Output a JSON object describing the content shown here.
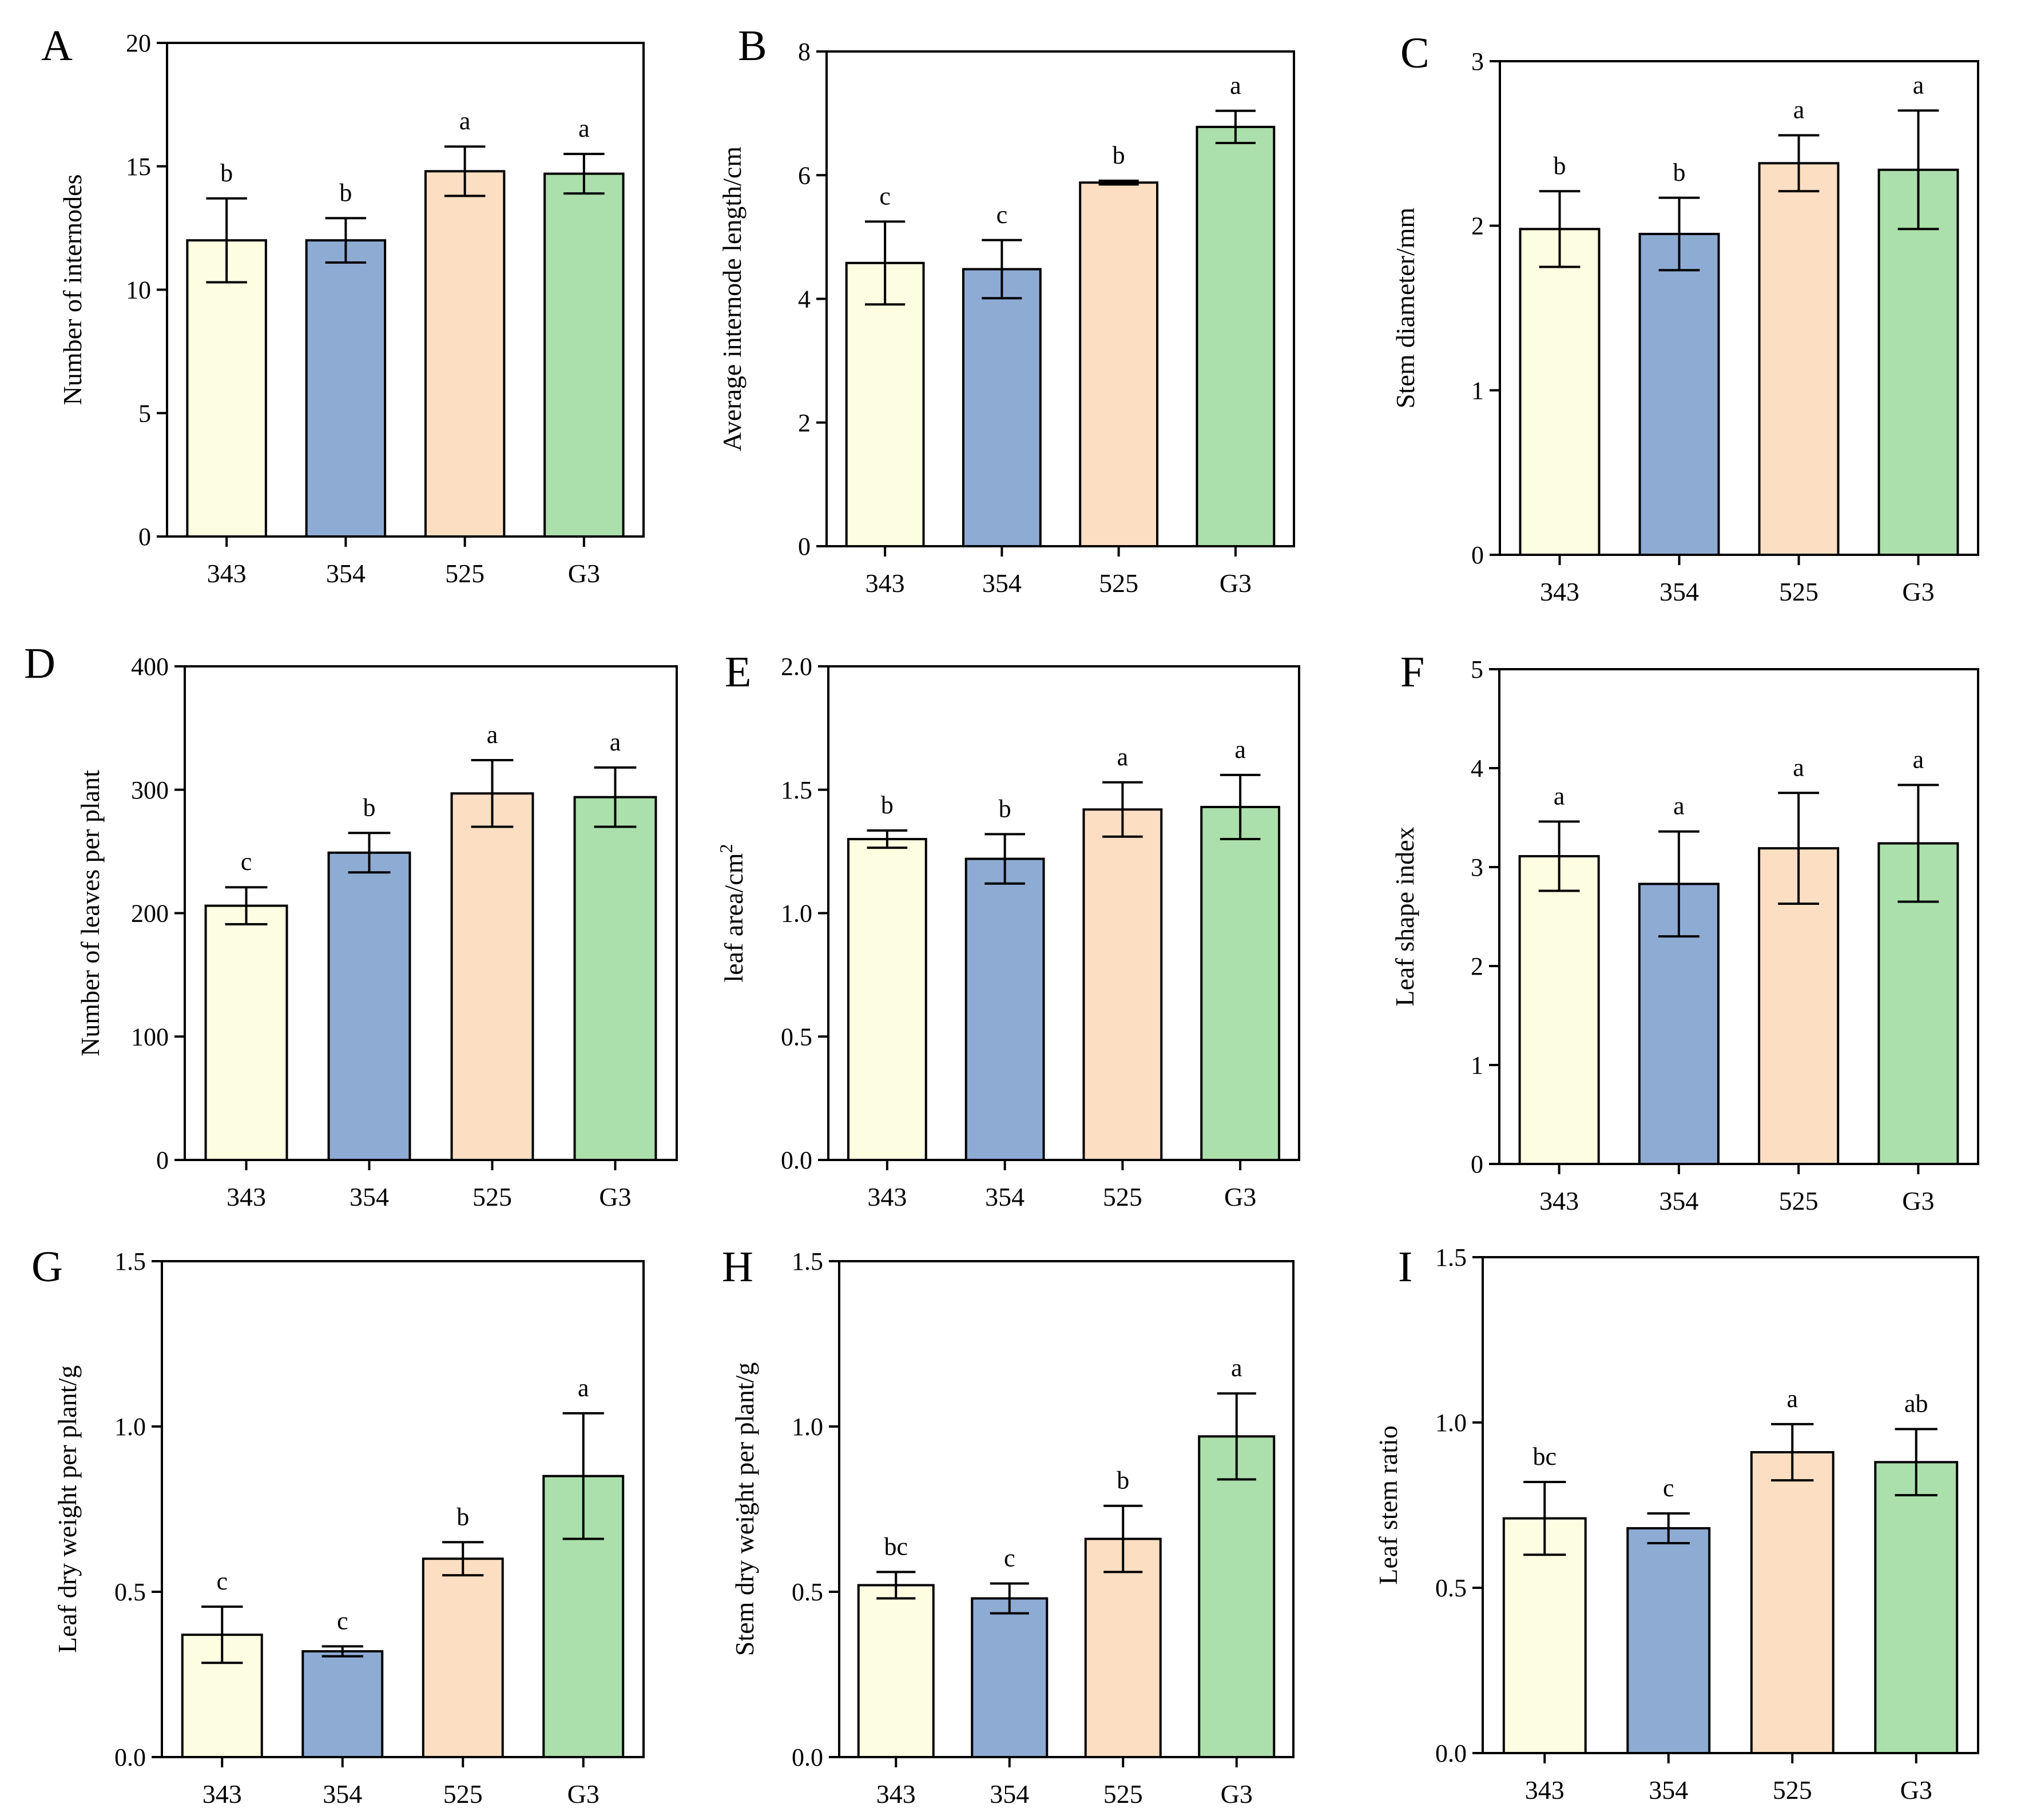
{
  "figure": {
    "bar_colors": [
      "#fdfde1",
      "#8eabd3",
      "#fcdfc2",
      "#abdfab"
    ],
    "stroke_color": "#000000"
  },
  "chart_data": [
    {
      "panel": "A",
      "type": "bar",
      "categories": [
        "343",
        "354",
        "525",
        "G3"
      ],
      "values": [
        12.0,
        12.0,
        14.8,
        14.7
      ],
      "errors": [
        1.7,
        0.9,
        1.0,
        0.8
      ],
      "significance": [
        "b",
        "b",
        "a",
        "a"
      ],
      "ylabel": "Number of internodes",
      "ylim": [
        0,
        20
      ],
      "yticks": [
        "0",
        "5",
        "10",
        "15",
        "20"
      ],
      "ylabel_sup": ""
    },
    {
      "panel": "B",
      "type": "bar",
      "categories": [
        "343",
        "354",
        "525",
        "G3"
      ],
      "values": [
        4.58,
        4.48,
        5.88,
        6.78
      ],
      "errors": [
        0.67,
        0.47,
        0.03,
        0.26
      ],
      "significance": [
        "c",
        "c",
        "b",
        "a"
      ],
      "ylabel": "Average internode length/cm",
      "ylim": [
        0,
        8
      ],
      "yticks": [
        "0",
        "2",
        "4",
        "6",
        "8"
      ],
      "ylabel_sup": ""
    },
    {
      "panel": "C",
      "type": "bar",
      "categories": [
        "343",
        "354",
        "525",
        "G3"
      ],
      "values": [
        1.98,
        1.95,
        2.38,
        2.34
      ],
      "errors": [
        0.23,
        0.22,
        0.17,
        0.36
      ],
      "significance": [
        "b",
        "b",
        "a",
        "a"
      ],
      "ylabel": "Stem diameter/mm",
      "ylim": [
        0,
        3
      ],
      "yticks": [
        "0",
        "1",
        "2",
        "3"
      ],
      "ylabel_sup": ""
    },
    {
      "panel": "D",
      "type": "bar",
      "categories": [
        "343",
        "354",
        "525",
        "G3"
      ],
      "values": [
        206,
        249,
        297,
        294
      ],
      "errors": [
        15,
        16,
        27,
        24
      ],
      "significance": [
        "c",
        "b",
        "a",
        "a"
      ],
      "ylabel": "Number of leaves per plant",
      "ylim": [
        0,
        400
      ],
      "yticks": [
        "0",
        "100",
        "200",
        "300",
        "400"
      ],
      "ylabel_sup": ""
    },
    {
      "panel": "E",
      "type": "bar",
      "categories": [
        "343",
        "354",
        "525",
        "G3"
      ],
      "values": [
        1.3,
        1.22,
        1.42,
        1.43
      ],
      "errors": [
        0.035,
        0.1,
        0.11,
        0.13
      ],
      "significance": [
        "b",
        "b",
        "a",
        "a"
      ],
      "ylabel": "leaf area/cm",
      "ylim": [
        0,
        2
      ],
      "yticks": [
        "0.0",
        "0.5",
        "1.0",
        "1.5",
        "2.0"
      ],
      "ylabel_sup": "2"
    },
    {
      "panel": "F",
      "type": "bar",
      "categories": [
        "343",
        "354",
        "525",
        "G3"
      ],
      "values": [
        3.11,
        2.83,
        3.19,
        3.24
      ],
      "errors": [
        0.35,
        0.53,
        0.56,
        0.59
      ],
      "significance": [
        "a",
        "a",
        "a",
        "a"
      ],
      "ylabel": "Leaf shape index",
      "ylim": [
        0,
        5
      ],
      "yticks": [
        "0",
        "1",
        "2",
        "3",
        "4",
        "5"
      ],
      "ylabel_sup": ""
    },
    {
      "panel": "G",
      "type": "bar",
      "categories": [
        "343",
        "354",
        "525",
        "G3"
      ],
      "values": [
        0.37,
        0.32,
        0.6,
        0.85
      ],
      "errors": [
        0.085,
        0.015,
        0.05,
        0.19
      ],
      "significance": [
        "c",
        "c",
        "b",
        "a"
      ],
      "ylabel": "Leaf dry weight per plant/g",
      "ylim": [
        0,
        1.5
      ],
      "yticks": [
        "0.0",
        "0.5",
        "1.0",
        "1.5"
      ],
      "ylabel_sup": ""
    },
    {
      "panel": "H",
      "type": "bar",
      "categories": [
        "343",
        "354",
        "525",
        "G3"
      ],
      "values": [
        0.52,
        0.48,
        0.66,
        0.97
      ],
      "errors": [
        0.04,
        0.045,
        0.1,
        0.13
      ],
      "significance": [
        "bc",
        "c",
        "b",
        "a"
      ],
      "ylabel": "Stem dry weight per plant/g",
      "ylim": [
        0,
        1.5
      ],
      "yticks": [
        "0.0",
        "0.5",
        "1.0",
        "1.5"
      ],
      "ylabel_sup": ""
    },
    {
      "panel": "I",
      "type": "bar",
      "categories": [
        "343",
        "354",
        "525",
        "G3"
      ],
      "values": [
        0.71,
        0.68,
        0.91,
        0.88
      ],
      "errors": [
        0.11,
        0.045,
        0.085,
        0.1
      ],
      "significance": [
        "bc",
        "c",
        "a",
        "ab"
      ],
      "ylabel": "Leaf stem ratio",
      "ylim": [
        0,
        1.5
      ],
      "yticks": [
        "0.0",
        "0.5",
        "1.0",
        "1.5"
      ],
      "ylabel_sup": ""
    }
  ]
}
